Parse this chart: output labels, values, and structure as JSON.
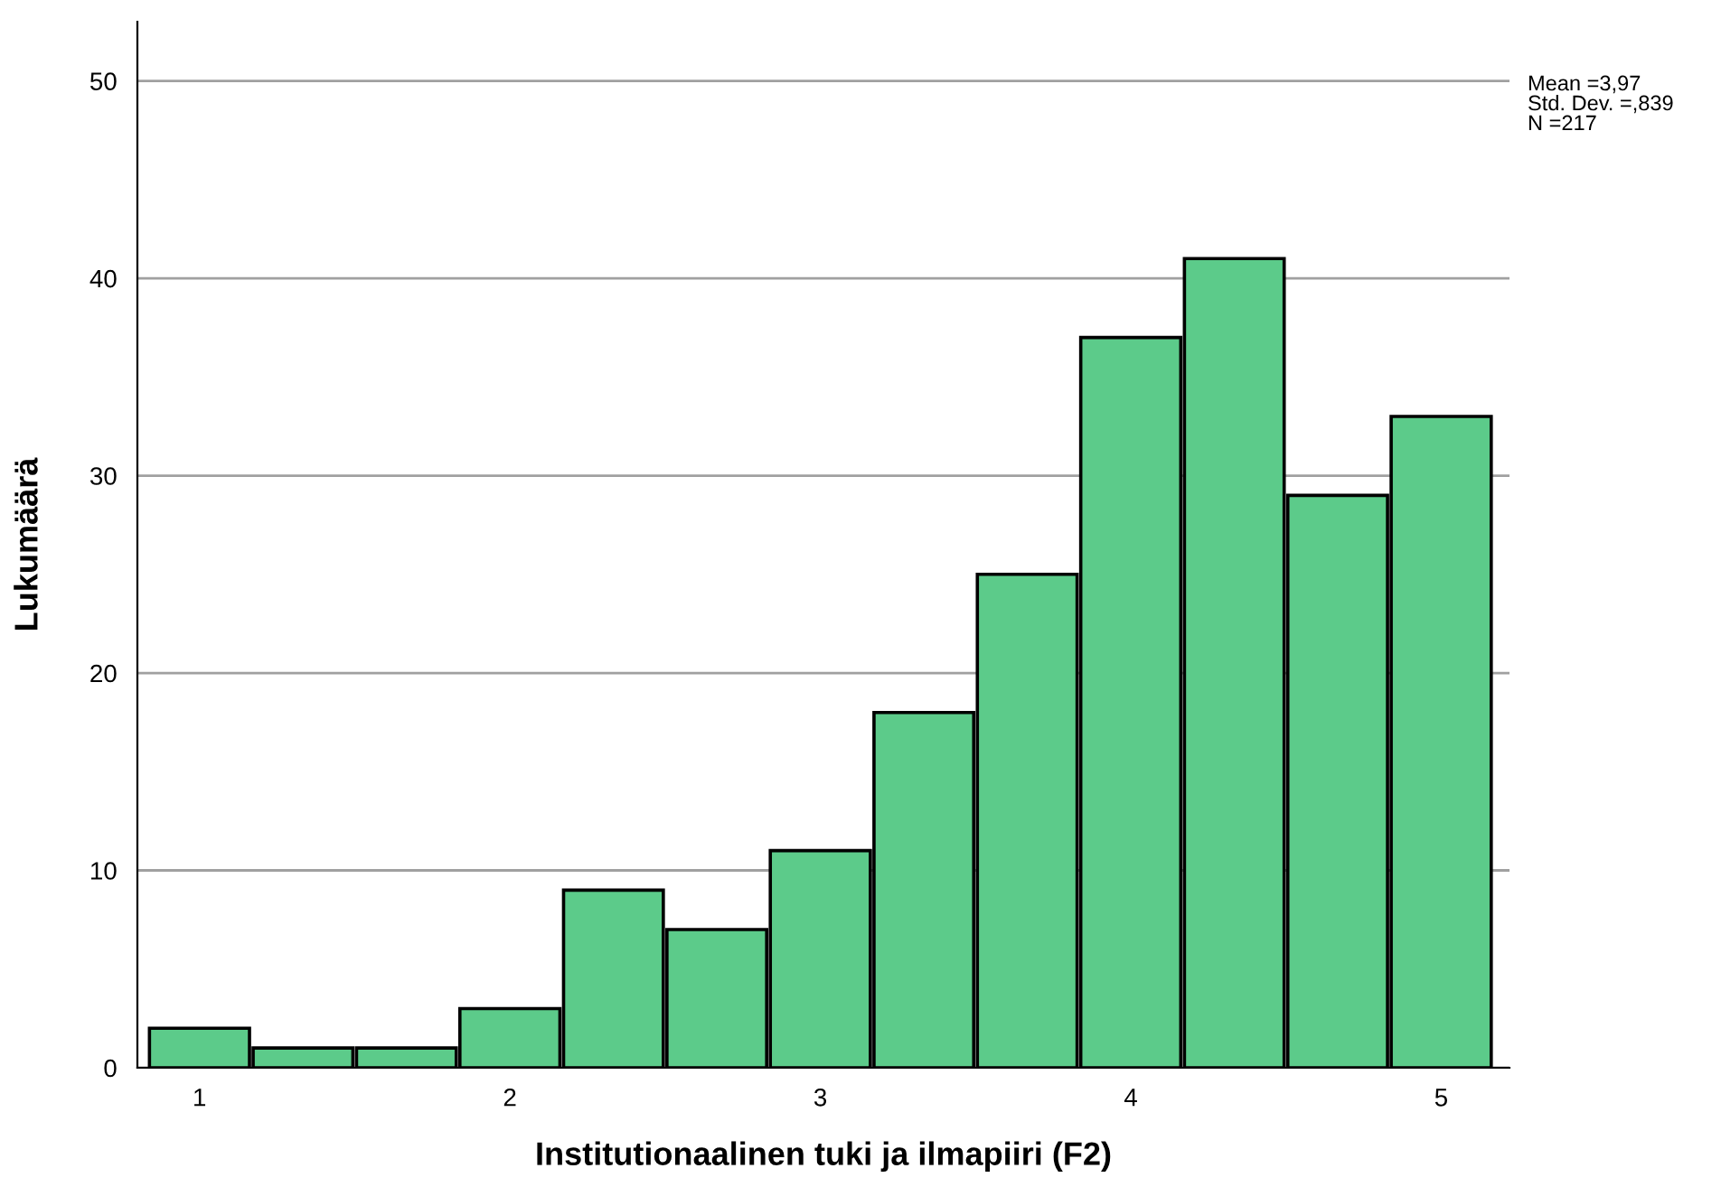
{
  "chart_data": {
    "type": "histogram",
    "xlabel": "Institutionaalinen tuki ja ilmapiiri (F2)",
    "ylabel": "Lukumäärä",
    "bins": [
      0.833,
      1.167,
      1.5,
      1.833,
      2.167,
      2.5,
      2.833,
      3.167,
      3.5,
      3.833,
      4.167,
      4.5,
      4.833,
      5.167
    ],
    "values": [
      2,
      1,
      1,
      3,
      9,
      7,
      11,
      18,
      25,
      37,
      41,
      29,
      33
    ],
    "color": "#5ccb8a",
    "xlim": [
      0.8,
      5.22
    ],
    "xticks": [
      1,
      2,
      3,
      4,
      5
    ],
    "ylim": [
      0,
      53
    ],
    "yticks": [
      0,
      10,
      20,
      30,
      40,
      50
    ],
    "grid": "y",
    "annotations": [
      "Mean =3,97",
      "Std. Dev. =,839",
      "N =217"
    ]
  }
}
